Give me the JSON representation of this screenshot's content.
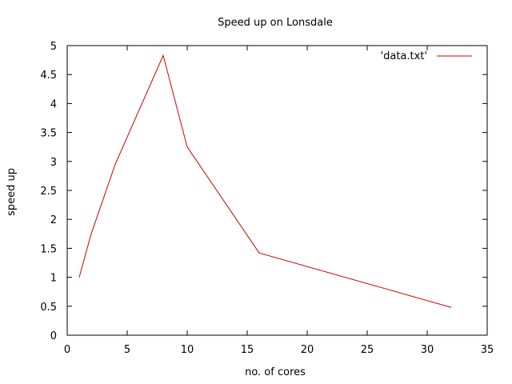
{
  "chart_data": {
    "type": "line",
    "title": "Speed up on Lonsdale",
    "xlabel": "no. of cores",
    "ylabel": "speed up",
    "xlim": [
      0,
      35
    ],
    "ylim": [
      0,
      5
    ],
    "x_ticks": [
      0,
      5,
      10,
      15,
      20,
      25,
      30,
      35
    ],
    "y_ticks": [
      0,
      0.5,
      1,
      1.5,
      2,
      2.5,
      3,
      3.5,
      4,
      4.5,
      5
    ],
    "grid": false,
    "legend_position": "top-right",
    "series": [
      {
        "name": "'data.txt'",
        "color": "#cc0000",
        "x": [
          1,
          2,
          4,
          8,
          10,
          16,
          32
        ],
        "y": [
          1.0,
          1.75,
          2.95,
          4.83,
          3.25,
          1.42,
          0.48
        ]
      }
    ]
  }
}
